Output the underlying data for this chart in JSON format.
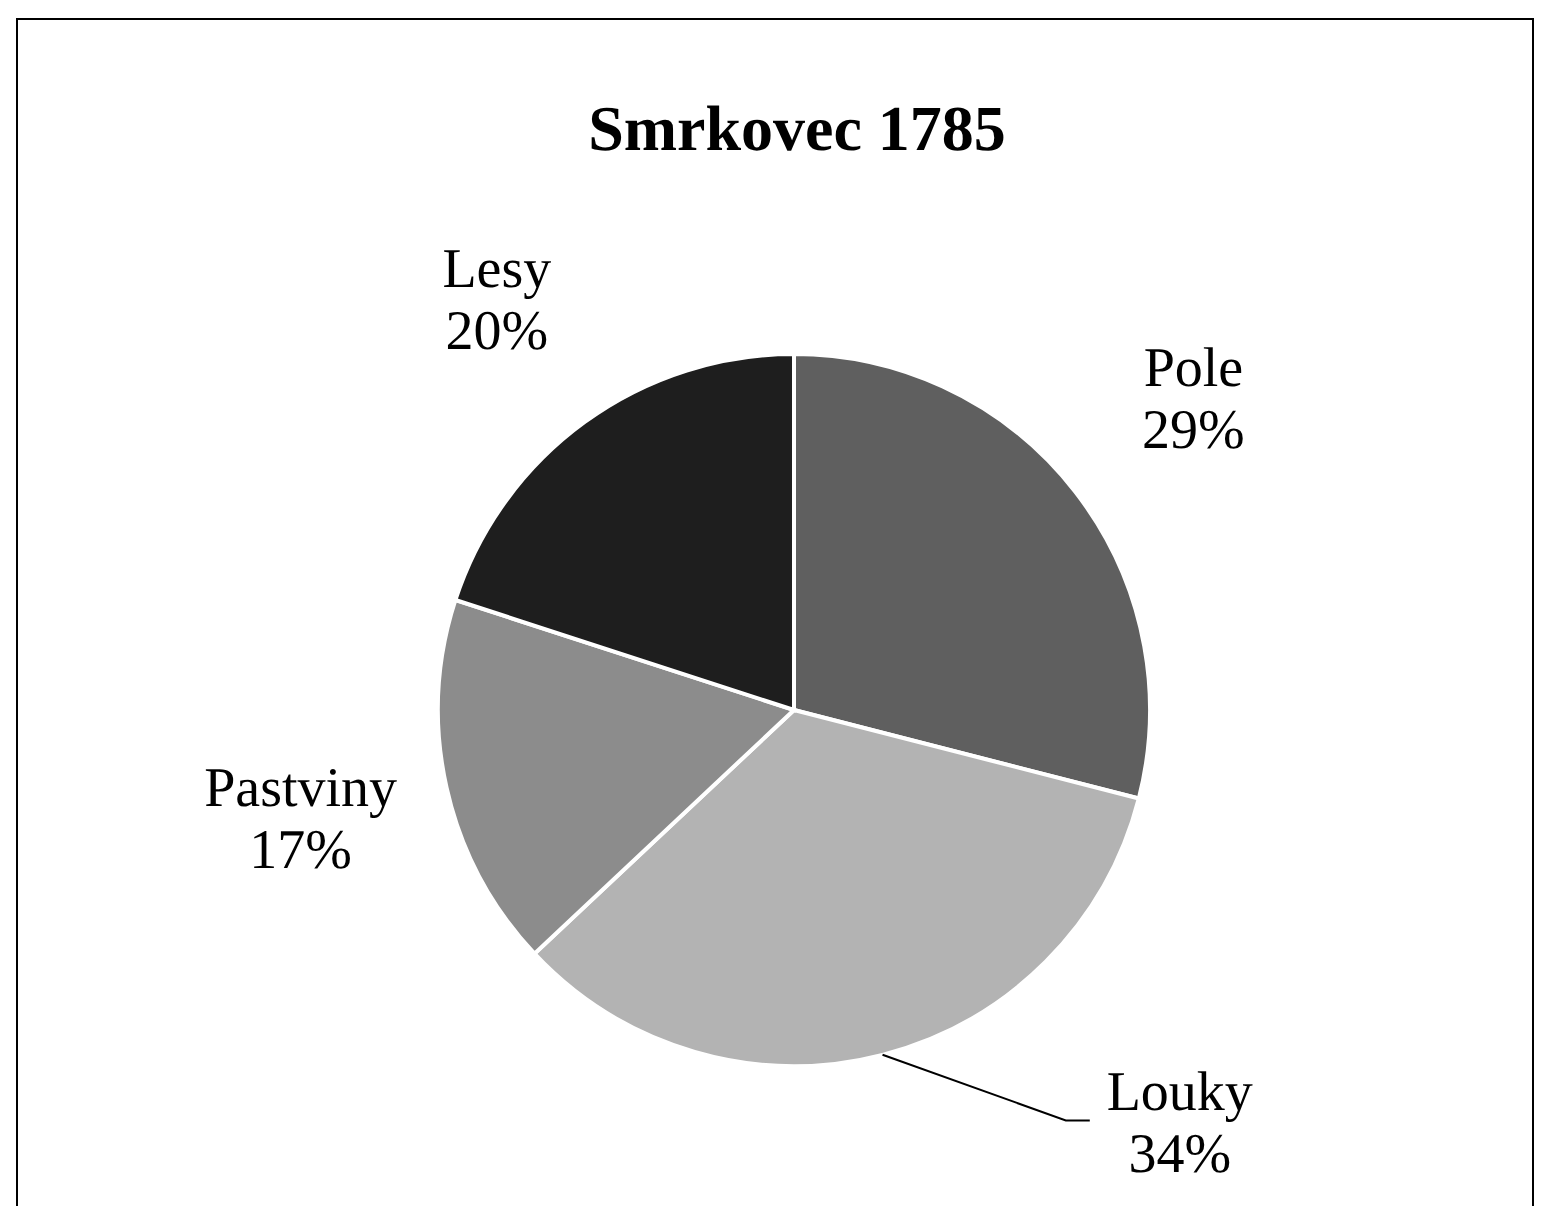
{
  "chart_data": {
    "type": "pie",
    "title": "Smrkovec 1785",
    "categories": [
      "Pole",
      "Louky",
      "Pastviny",
      "Lesy"
    ],
    "values": [
      29,
      34,
      17,
      20
    ],
    "value_labels": [
      "29%",
      "34%",
      "17%",
      "20%"
    ],
    "colors": [
      "#5f5f5f",
      "#b3b3b3",
      "#8c8c8c",
      "#1e1e1e"
    ]
  }
}
